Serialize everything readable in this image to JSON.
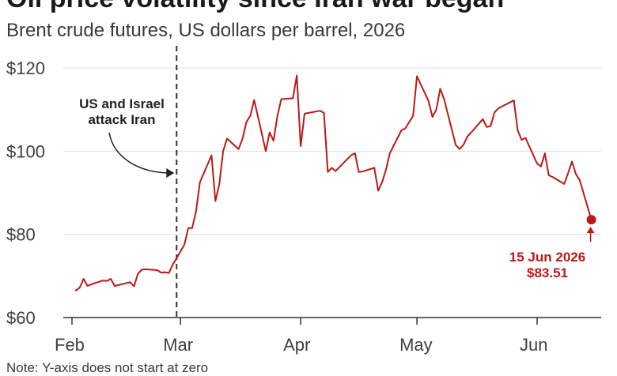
{
  "chart_data": {
    "type": "line",
    "title": "Oil price volatility since Iran war began",
    "subtitle": "Brent crude futures, US dollars per barrel, 2026",
    "note": "Note: Y-axis does not start at zero",
    "xlabel": "",
    "ylabel": "",
    "ylim": [
      60,
      120
    ],
    "yticks": [
      {
        "value": 60,
        "label": "$60"
      },
      {
        "value": 80,
        "label": "$80"
      },
      {
        "value": 100,
        "label": "$100"
      },
      {
        "value": 120,
        "label": "$120"
      }
    ],
    "xticks": [
      {
        "date": "2026-02-01",
        "label": "Feb"
      },
      {
        "date": "2026-03-01",
        "label": "Mar"
      },
      {
        "date": "2026-04-01",
        "label": "Apr"
      },
      {
        "date": "2026-05-01",
        "label": "May"
      },
      {
        "date": "2026-06-01",
        "label": "Jun"
      }
    ],
    "grid": true,
    "line_color": "#bb1919",
    "annotations": [
      {
        "date": "2026-02-28",
        "label_lines": [
          "US and Israel",
          "attack Iran"
        ],
        "style": "dashed-vertical-line"
      }
    ],
    "last_point": {
      "date": "2026-06-15",
      "value": 83.51,
      "label_lines": [
        "15 Jun 2026",
        "$83.51"
      ]
    },
    "series": [
      {
        "points": [
          [
            "2026-02-02",
            66.5
          ],
          [
            "2026-02-03",
            67.2
          ],
          [
            "2026-02-04",
            69.3
          ],
          [
            "2026-02-05",
            67.6
          ],
          [
            "2026-02-06",
            68.0
          ],
          [
            "2026-02-09",
            68.9
          ],
          [
            "2026-02-10",
            68.8
          ],
          [
            "2026-02-11",
            69.3
          ],
          [
            "2026-02-12",
            67.6
          ],
          [
            "2026-02-16",
            68.5
          ],
          [
            "2026-02-17",
            67.5
          ],
          [
            "2026-02-18",
            70.5
          ],
          [
            "2026-02-19",
            71.5
          ],
          [
            "2026-02-20",
            71.6
          ],
          [
            "2026-02-23",
            71.4
          ],
          [
            "2026-02-24",
            70.8
          ],
          [
            "2026-02-25",
            70.9
          ],
          [
            "2026-02-26",
            70.7
          ],
          [
            "2026-02-27",
            72.7
          ],
          [
            "2026-03-02",
            77.5
          ],
          [
            "2026-03-03",
            81.5
          ],
          [
            "2026-03-04",
            81.5
          ],
          [
            "2026-03-05",
            85.5
          ],
          [
            "2026-03-06",
            92.5
          ],
          [
            "2026-03-09",
            99.0
          ],
          [
            "2026-03-10",
            88.0
          ],
          [
            "2026-03-11",
            92.0
          ],
          [
            "2026-03-12",
            100.0
          ],
          [
            "2026-03-13",
            103.0
          ],
          [
            "2026-03-16",
            100.5
          ],
          [
            "2026-03-17",
            103.0
          ],
          [
            "2026-03-18",
            107.0
          ],
          [
            "2026-03-19",
            108.5
          ],
          [
            "2026-03-20",
            112.3
          ],
          [
            "2026-03-23",
            100.0
          ],
          [
            "2026-03-24",
            104.5
          ],
          [
            "2026-03-25",
            102.5
          ],
          [
            "2026-03-26",
            108.5
          ],
          [
            "2026-03-27",
            112.5
          ],
          [
            "2026-03-30",
            112.7
          ],
          [
            "2026-03-31",
            118.2
          ],
          [
            "2026-04-01",
            101.2
          ],
          [
            "2026-04-02",
            109.0
          ],
          [
            "2026-04-06",
            109.7
          ],
          [
            "2026-04-07",
            109.2
          ],
          [
            "2026-04-08",
            95.0
          ],
          [
            "2026-04-09",
            96.0
          ],
          [
            "2026-04-10",
            95.2
          ],
          [
            "2026-04-14",
            99.0
          ],
          [
            "2026-04-15",
            99.5
          ],
          [
            "2026-04-16",
            95.0
          ],
          [
            "2026-04-17",
            95.1
          ],
          [
            "2026-04-20",
            96.0
          ],
          [
            "2026-04-21",
            90.5
          ],
          [
            "2026-04-22",
            92.5
          ],
          [
            "2026-04-23",
            95.5
          ],
          [
            "2026-04-24",
            99.5
          ],
          [
            "2026-04-27",
            105.0
          ],
          [
            "2026-04-28",
            105.5
          ],
          [
            "2026-04-29",
            107.0
          ],
          [
            "2026-04-30",
            108.5
          ],
          [
            "2026-05-01",
            118.0
          ],
          [
            "2026-05-04",
            112.0
          ],
          [
            "2026-05-05",
            108.2
          ],
          [
            "2026-05-06",
            110.0
          ],
          [
            "2026-05-07",
            115.0
          ],
          [
            "2026-05-08",
            112.5
          ],
          [
            "2026-05-11",
            101.5
          ],
          [
            "2026-05-12",
            100.5
          ],
          [
            "2026-05-13",
            101.5
          ],
          [
            "2026-05-14",
            103.5
          ],
          [
            "2026-05-15",
            104.5
          ],
          [
            "2026-05-18",
            107.7
          ],
          [
            "2026-05-19",
            105.8
          ],
          [
            "2026-05-20",
            106.0
          ],
          [
            "2026-05-21",
            109.3
          ],
          [
            "2026-05-22",
            110.3
          ],
          [
            "2026-05-26",
            112.2
          ],
          [
            "2026-05-27",
            105.0
          ],
          [
            "2026-05-28",
            102.7
          ],
          [
            "2026-05-29",
            103.2
          ],
          [
            "2026-06-01",
            97.0
          ],
          [
            "2026-06-02",
            96.3
          ],
          [
            "2026-06-03",
            99.5
          ],
          [
            "2026-06-04",
            94.2
          ],
          [
            "2026-06-05",
            93.8
          ],
          [
            "2026-06-08",
            92.1
          ],
          [
            "2026-06-09",
            94.7
          ],
          [
            "2026-06-10",
            97.5
          ],
          [
            "2026-06-11",
            94.5
          ],
          [
            "2026-06-12",
            93.0
          ],
          [
            "2026-06-15",
            83.5
          ]
        ]
      }
    ]
  }
}
